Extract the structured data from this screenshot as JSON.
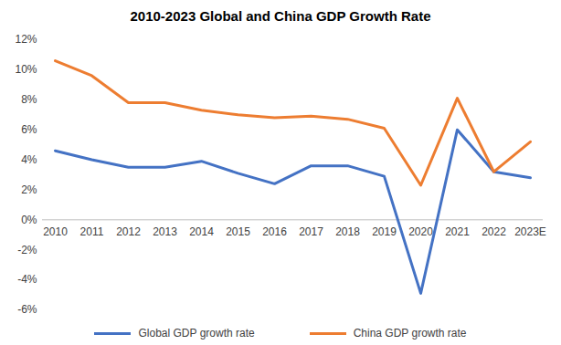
{
  "chart_data": {
    "type": "line",
    "title": "2010-2023  Global and China GDP Growth Rate",
    "categories": [
      "2010",
      "2011",
      "2012",
      "2013",
      "2014",
      "2015",
      "2016",
      "2017",
      "2018",
      "2019",
      "2020",
      "2021",
      "2022",
      "2023E"
    ],
    "series": [
      {
        "name": "Global GDP growth rate",
        "color": "#4472c4",
        "values": [
          4.6,
          4.0,
          3.5,
          3.5,
          3.9,
          3.1,
          2.4,
          3.6,
          3.6,
          2.9,
          -4.9,
          6.0,
          3.2,
          2.8
        ]
      },
      {
        "name": "China GDP growth rate",
        "color": "#ed7d31",
        "values": [
          10.6,
          9.6,
          7.8,
          7.8,
          7.3,
          7.0,
          6.8,
          6.9,
          6.7,
          6.1,
          2.3,
          8.1,
          3.2,
          5.2
        ]
      }
    ],
    "ylim": [
      -6,
      12
    ],
    "yticks": [
      {
        "value": -6,
        "label": "-6%"
      },
      {
        "value": -4,
        "label": "-4%"
      },
      {
        "value": -2,
        "label": "-2%"
      },
      {
        "value": 0,
        "label": "0%"
      },
      {
        "value": 2,
        "label": "2%"
      },
      {
        "value": 4,
        "label": "4%"
      },
      {
        "value": 6,
        "label": "6%"
      },
      {
        "value": 8,
        "label": "8%"
      },
      {
        "value": 10,
        "label": "10%"
      },
      {
        "value": 12,
        "label": "12%"
      }
    ],
    "grid": false,
    "legend": "bottom"
  }
}
